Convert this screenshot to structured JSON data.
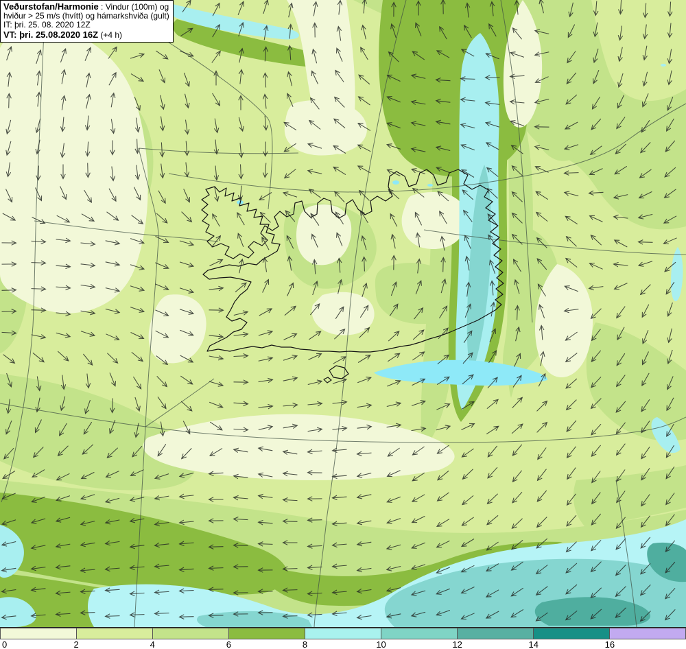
{
  "header": {
    "model_bold": "Veðurstofan/Harmonie",
    "line1_rest": ": Vindur (100m) og",
    "line2": "hviður > 25 m/s (hvítt) og hámarkshviða (gult)",
    "line3": "IT: þri. 25. 08. 2020 12Z",
    "line4_bold": "VT: þri. 25.08.2020 16Z",
    "line4_rest": "(+4 h)"
  },
  "legend": {
    "tick_labels": [
      "0",
      "2",
      "4",
      "6",
      "8",
      "10",
      "12",
      "14",
      "16"
    ],
    "colors": [
      "#f2f8d8",
      "#d8ed9c",
      "#c3e38a",
      "#8bbc40",
      "#a9f2ee",
      "#7fd4c5",
      "#58b0a2",
      "#179086",
      "#c2aaf0"
    ]
  },
  "palette": {
    "shade_0_2": "#f2f8d8",
    "shade_2_4": "#d8ed9c",
    "shade_4_6": "#c3e38a",
    "shade_6_8": "#8bbc40",
    "shade_8_10": "#a8eff0",
    "shade_10_12": "#85d6d0",
    "shade_12_14": "#4fae9f",
    "shade_14_16": "#179086",
    "shade_16_plus": "#c2aaf0",
    "arrow": "#232823",
    "graticule": "#3f4f43",
    "coast": "#141414"
  },
  "chart_data": {
    "type": "wind_map",
    "title": "Veðurstofan/Harmonie : Vindur (100m) og hviður > 25 m/s (hvítt) og hámarkshviða (gult)",
    "init_time": "þri. 25. 08. 2020 12Z",
    "valid_time": "þri. 25.08.2020 16Z (+4 h)",
    "lead_hours": 4,
    "legend_values": [
      0,
      2,
      4,
      6,
      8,
      10,
      12,
      14,
      16
    ],
    "wind_direction_grid": {
      "cols": 9,
      "rows": 9,
      "x_step": 125,
      "y_step": 118.125,
      "angles_deg_screen": [
        [
          45,
          45,
          55,
          70,
          80,
          85,
          90,
          268,
          268
        ],
        [
          85,
          80,
          285,
          90,
          130,
          175,
          185,
          250,
          260
        ],
        [
          255,
          265,
          272,
          275,
          150,
          170,
          135,
          215,
          225
        ],
        [
          0,
          355,
          335,
          120,
          110,
          95,
          135,
          135,
          215
        ],
        [
          5,
          350,
          335,
          15,
          50,
          45,
          80,
          235,
          265
        ],
        [
          265,
          250,
          310,
          5,
          5,
          20,
          45,
          225,
          245
        ],
        [
          205,
          200,
          190,
          170,
          185,
          215,
          230,
          235,
          235
        ],
        [
          190,
          185,
          185,
          180,
          185,
          200,
          215,
          225,
          230
        ],
        [
          185,
          180,
          180,
          180,
          185,
          195,
          210,
          220,
          225
        ]
      ]
    },
    "arrow_style": {
      "grid_dx": 37,
      "grid_dy": 34,
      "length": 21,
      "barb_len": 7.5,
      "barb_angle_deg": 26
    }
  }
}
